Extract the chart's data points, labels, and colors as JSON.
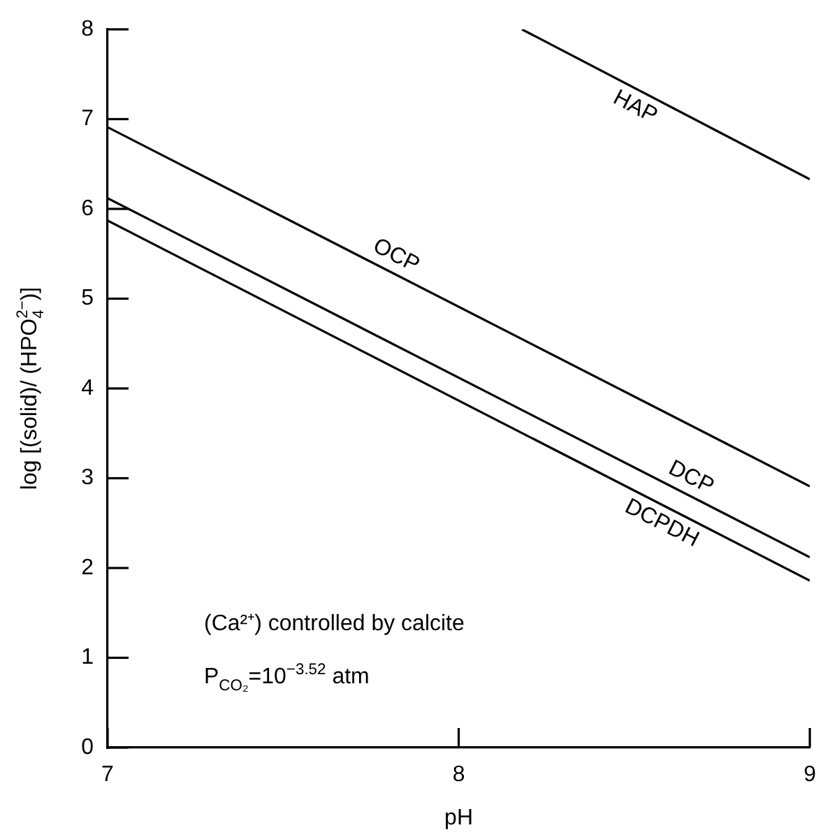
{
  "chart_data": {
    "type": "line",
    "xlabel": "pH",
    "ylabel": "log [(solid)/ (HPO$_{4}$$^{2−}$)]",
    "xlim": [
      7,
      9
    ],
    "xticks": [
      7,
      8,
      9
    ],
    "ylim": [
      0,
      8
    ],
    "yticks": [
      0,
      1,
      2,
      3,
      4,
      5,
      6,
      7,
      8
    ],
    "grid": false,
    "legend": false,
    "marker": "none",
    "line_style": "solid",
    "series": [
      {
        "name": "HAP",
        "color": "#000000",
        "x": [
          8.18,
          9
        ],
        "values": [
          8,
          6.33
        ]
      },
      {
        "name": "OCP",
        "color": "#000000",
        "x": [
          7,
          9
        ],
        "values": [
          6.91,
          2.91
        ]
      },
      {
        "name": "DCP",
        "color": "#000000",
        "x": [
          7,
          9
        ],
        "values": [
          6.12,
          2.12
        ]
      },
      {
        "name": "DCPDH",
        "color": "#000000",
        "x": [
          7,
          9
        ],
        "values": [
          5.87,
          1.86
        ]
      }
    ],
    "annotations": [
      "(Ca²⁺) controlled by calcite",
      "P$_{CO₂}$=10$^{−3.52}$ atm"
    ]
  }
}
